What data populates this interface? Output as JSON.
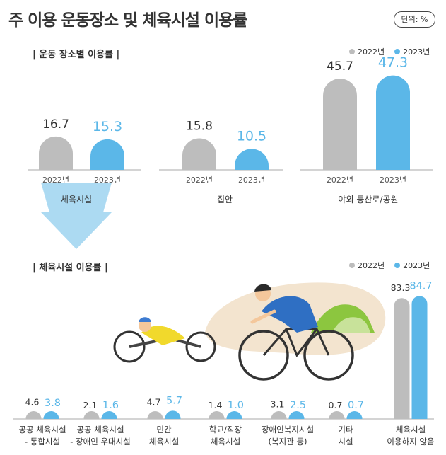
{
  "title": "주 이용 운동장소 및 체육시설 이용률",
  "unit": "단위: %",
  "colors": {
    "y2022": "#bdbdbd",
    "y2023": "#5bb7e8",
    "axis": "#aaaaaa",
    "arrow": "#9ed3f0",
    "blob": "#f3e4cf"
  },
  "top_section": {
    "label": "| 운동 장소별 이용률 |"
  },
  "bottom_section": {
    "label": "| 체육시설 이용률 |"
  },
  "chart_data": [
    {
      "type": "bar",
      "series": [
        {
          "name": "2022년",
          "values": [
            16.7,
            15.8,
            45.7
          ]
        },
        {
          "name": "2023년",
          "values": [
            15.3,
            10.5,
            47.3
          ]
        }
      ],
      "categories": [
        "체육시설",
        "집안",
        "야외 등산로/공원"
      ],
      "tick_labels": [
        "2022년",
        "2023년"
      ],
      "legend": {
        "labels": [
          "2022년",
          "2023년"
        ],
        "position": "top-right"
      },
      "value_labels": [
        [
          "16.7",
          "15.8",
          "45.7"
        ],
        [
          "15.3",
          "10.5",
          "47.3"
        ]
      ],
      "ylim": [
        0,
        50
      ]
    },
    {
      "type": "bar",
      "series": [
        {
          "name": "2022년",
          "values": [
            4.6,
            2.1,
            4.7,
            1.4,
            3.1,
            0.7,
            83.3
          ]
        },
        {
          "name": "2023년",
          "values": [
            3.8,
            1.6,
            5.7,
            1.0,
            2.5,
            0.7,
            84.7
          ]
        }
      ],
      "categories": [
        [
          "공공 체육시설",
          "- 통합시설"
        ],
        [
          "공공 체육시설",
          "- 장애인 우대시설"
        ],
        [
          "민간",
          "체육시설"
        ],
        [
          "학교/직장",
          "체육시설"
        ],
        [
          "장애인복지시설",
          "(복지관 등)"
        ],
        [
          "기타",
          "시설"
        ],
        [
          "체육시설",
          "이용하지 않음"
        ]
      ],
      "legend": {
        "labels": [
          "2022년",
          "2023년"
        ],
        "position": "top-right"
      },
      "value_labels": [
        [
          "4.6",
          "2.1",
          "4.7",
          "1.4",
          "3.1",
          "0.7",
          "83.3"
        ],
        [
          "3.8",
          "1.6",
          "5.7",
          "1.0",
          "2.5",
          "0.7",
          "84.7"
        ]
      ],
      "ylim": [
        0,
        90
      ]
    }
  ]
}
